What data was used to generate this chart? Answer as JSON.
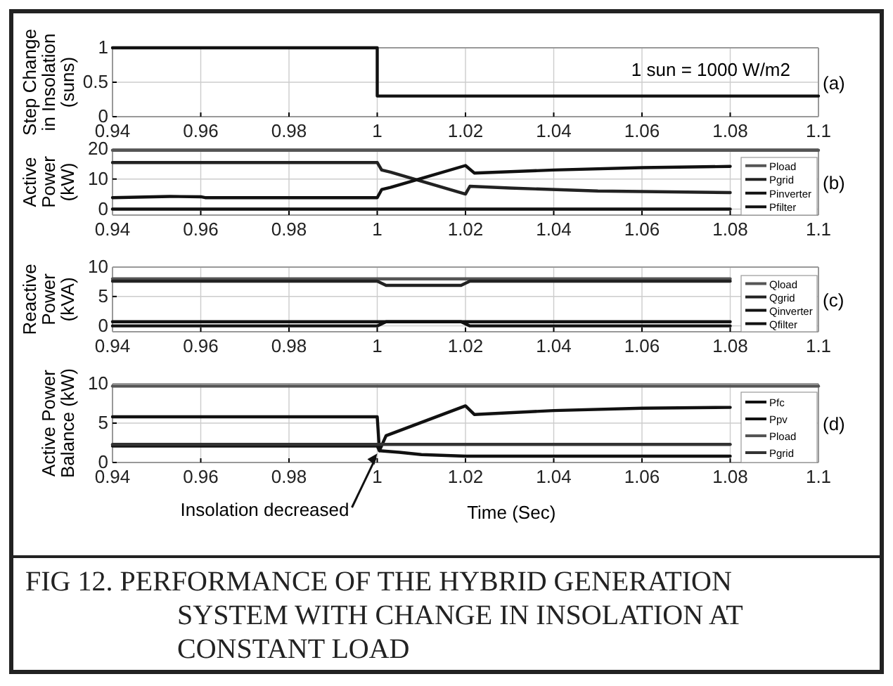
{
  "chart_data": [
    {
      "type": "line",
      "ylabel": "Step Change in Insolation (suns)",
      "xlim": [
        0.94,
        1.1
      ],
      "xticks": [
        0.94,
        0.96,
        0.98,
        1,
        1.02,
        1.04,
        1.06,
        1.08,
        1.1
      ],
      "ylim": [
        0,
        1
      ],
      "yticks": [
        0,
        0.5,
        1
      ],
      "grid": true,
      "legend": false,
      "annotations": [
        "1 sun = 1000 W/m2",
        "(a)"
      ],
      "series": [
        {
          "color": "#111111",
          "x": [
            0.94,
            1,
            1,
            1.1
          ],
          "values": [
            1,
            1,
            0.3,
            0.3
          ]
        }
      ]
    },
    {
      "type": "line",
      "ylabel": "Active Power (kW)",
      "xlim": [
        0.94,
        1.1
      ],
      "xticks": [
        0.94,
        0.96,
        0.98,
        1,
        1.02,
        1.04,
        1.06,
        1.08,
        1.1
      ],
      "ylim": [
        -2,
        20
      ],
      "yticks": [
        0,
        10,
        20
      ],
      "grid": true,
      "legend": "right",
      "annotations": [
        "(b)"
      ],
      "series": [
        {
          "name": "Pload",
          "color": "#555555",
          "x": [
            0.94,
            1.1
          ],
          "values": [
            19.6,
            19.6
          ]
        },
        {
          "name": "Pgrid",
          "color": "#222222",
          "x": [
            0.94,
            1,
            1.001,
            1.003,
            1.02,
            1.021,
            1.03,
            1.05,
            1.08
          ],
          "values": [
            15.5,
            15.5,
            13,
            12.3,
            5,
            7.6,
            7,
            6,
            5.5
          ]
        },
        {
          "name": "Pinverter",
          "color": "#111111",
          "x": [
            0.94,
            0.953,
            0.96,
            0.961,
            1,
            1.001,
            1.003,
            1.02,
            1.022,
            1.04,
            1.06,
            1.08
          ],
          "values": [
            3.8,
            4.2,
            4.1,
            3.8,
            3.8,
            6.5,
            7.2,
            14.5,
            12,
            13,
            13.8,
            14.2
          ]
        },
        {
          "name": "Pfilter",
          "color": "#111111",
          "x": [
            0.94,
            1.08
          ],
          "values": [
            0,
            0
          ]
        }
      ]
    },
    {
      "type": "line",
      "ylabel": "Reactive Power (kVA)",
      "xlim": [
        0.94,
        1.1
      ],
      "xticks": [
        0.94,
        0.96,
        0.98,
        1,
        1.02,
        1.04,
        1.06,
        1.08,
        1.1
      ],
      "ylim": [
        -1,
        10
      ],
      "yticks": [
        0,
        5,
        10
      ],
      "grid": true,
      "legend": "right",
      "annotations": [
        "(c)"
      ],
      "series": [
        {
          "name": "Qload",
          "color": "#555555",
          "x": [
            0.94,
            1.08
          ],
          "values": [
            8,
            8
          ]
        },
        {
          "name": "Qgrid",
          "color": "#222222",
          "x": [
            0.94,
            1,
            1.002,
            1.019,
            1.021,
            1.08
          ],
          "values": [
            7.6,
            7.6,
            6.9,
            6.9,
            7.6,
            7.6
          ]
        },
        {
          "name": "Qinverter",
          "color": "#111111",
          "x": [
            0.94,
            1,
            1.002,
            1.019,
            1.021,
            1.08
          ],
          "values": [
            0,
            0,
            0.7,
            0.7,
            0,
            0
          ]
        },
        {
          "name": "Qfilter",
          "color": "#111111",
          "x": [
            0.94,
            1.08
          ],
          "values": [
            0.7,
            0.7
          ]
        }
      ]
    },
    {
      "type": "line",
      "title": "FIG 12. PERFORMANCE OF THE HYBRID GENERATION SYSTEM WITH CHANGE IN INSOLATION AT CONSTANT LOAD",
      "xlabel": "Time (Sec)",
      "ylabel": "Active Power Balance (kW)",
      "xlim": [
        0.94,
        1.1
      ],
      "xticks": [
        0.94,
        0.96,
        0.98,
        1,
        1.02,
        1.04,
        1.06,
        1.08,
        1.1
      ],
      "ylim": [
        0,
        10
      ],
      "yticks": [
        0,
        5,
        10
      ],
      "grid": true,
      "legend": "right",
      "annotations": [
        {
          "text": "Insolation decreased",
          "x": 1,
          "y": 1.5
        },
        "(d)"
      ],
      "series": [
        {
          "name": "Pfc",
          "color": "#111111",
          "x": [
            0.94,
            1,
            1.0005,
            1.002,
            1.02,
            1.022,
            1.04,
            1.06,
            1.08
          ],
          "values": [
            5.8,
            5.8,
            1.5,
            3.4,
            7.2,
            6.1,
            6.6,
            6.9,
            7
          ]
        },
        {
          "name": "Ppv",
          "color": "#111111",
          "x": [
            0.94,
            1,
            1.0005,
            1.005,
            1.01,
            1.02,
            1.08
          ],
          "values": [
            2.1,
            2.1,
            1.5,
            1.3,
            1,
            0.8,
            0.8
          ]
        },
        {
          "name": "Pload",
          "color": "#555555",
          "x": [
            0.94,
            1.1
          ],
          "values": [
            9.7,
            9.7
          ]
        },
        {
          "name": "Pgrid",
          "color": "#333333",
          "x": [
            0.94,
            1.08
          ],
          "values": [
            2.3,
            2.3
          ]
        }
      ]
    }
  ]
}
